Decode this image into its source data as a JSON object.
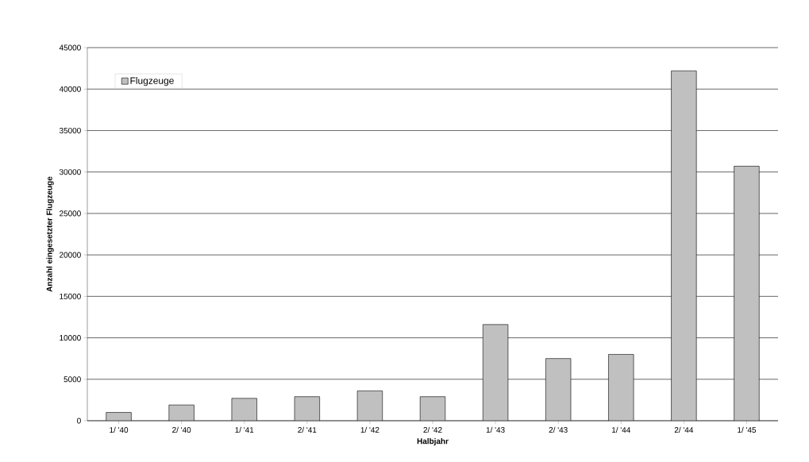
{
  "chart_data": {
    "type": "bar",
    "xlabel": "Halbjahr",
    "ylabel": "Anzahl eingesetzter Flugzeuge",
    "categories": [
      "1/ '40",
      "2/ '40",
      "1/ '41",
      "2/ '41",
      "1/ '42",
      "2/ '42",
      "1/ '43",
      "2/ '43",
      "1/ '44",
      "2/ '44",
      "1/ '45"
    ],
    "series": [
      {
        "name": "Flugzeuge",
        "color": "#c0c0c0",
        "values": [
          1000,
          1900,
          2700,
          2900,
          3600,
          2900,
          11600,
          7500,
          8000,
          42200,
          30700
        ]
      }
    ],
    "ylim": [
      0,
      45000
    ],
    "yticks": [
      0,
      5000,
      10000,
      15000,
      20000,
      25000,
      30000,
      35000,
      40000,
      45000
    ],
    "grid": "y",
    "legend": "top left"
  }
}
